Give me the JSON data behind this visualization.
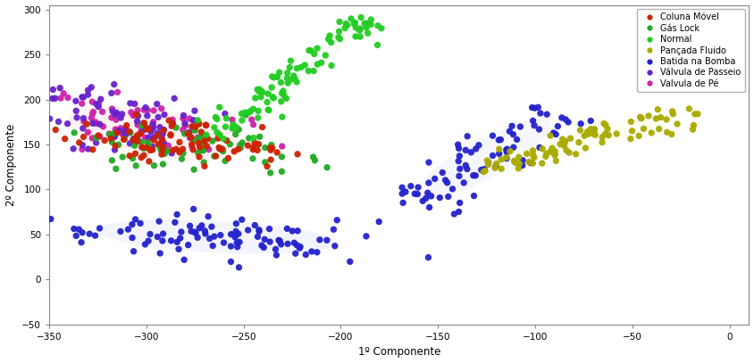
{
  "xlabel": "1º Componente",
  "ylabel": "2º Componente",
  "xlim": [
    -350,
    10
  ],
  "ylim": [
    -50,
    305
  ],
  "xticks": [
    -350,
    -300,
    -250,
    -200,
    -150,
    -100,
    -50,
    0
  ],
  "yticks": [
    -50,
    0,
    50,
    100,
    150,
    200,
    250,
    300
  ],
  "legend_labels": [
    "Coluna Móvel",
    "Gás Lock",
    "Normal",
    "Pançada Fluido",
    "Batida na Bomba",
    "Válvula de Passeio",
    "Valvula de Pé"
  ],
  "legend_colors": [
    "#cc2200",
    "#22aa22",
    "#22cc22",
    "#aaaa00",
    "#2222cc",
    "#6622cc",
    "#cc22aa"
  ],
  "background_color": "#ffffff",
  "figsize": [
    8.44,
    4.07
  ],
  "dpi": 100,
  "marker_size": 28
}
